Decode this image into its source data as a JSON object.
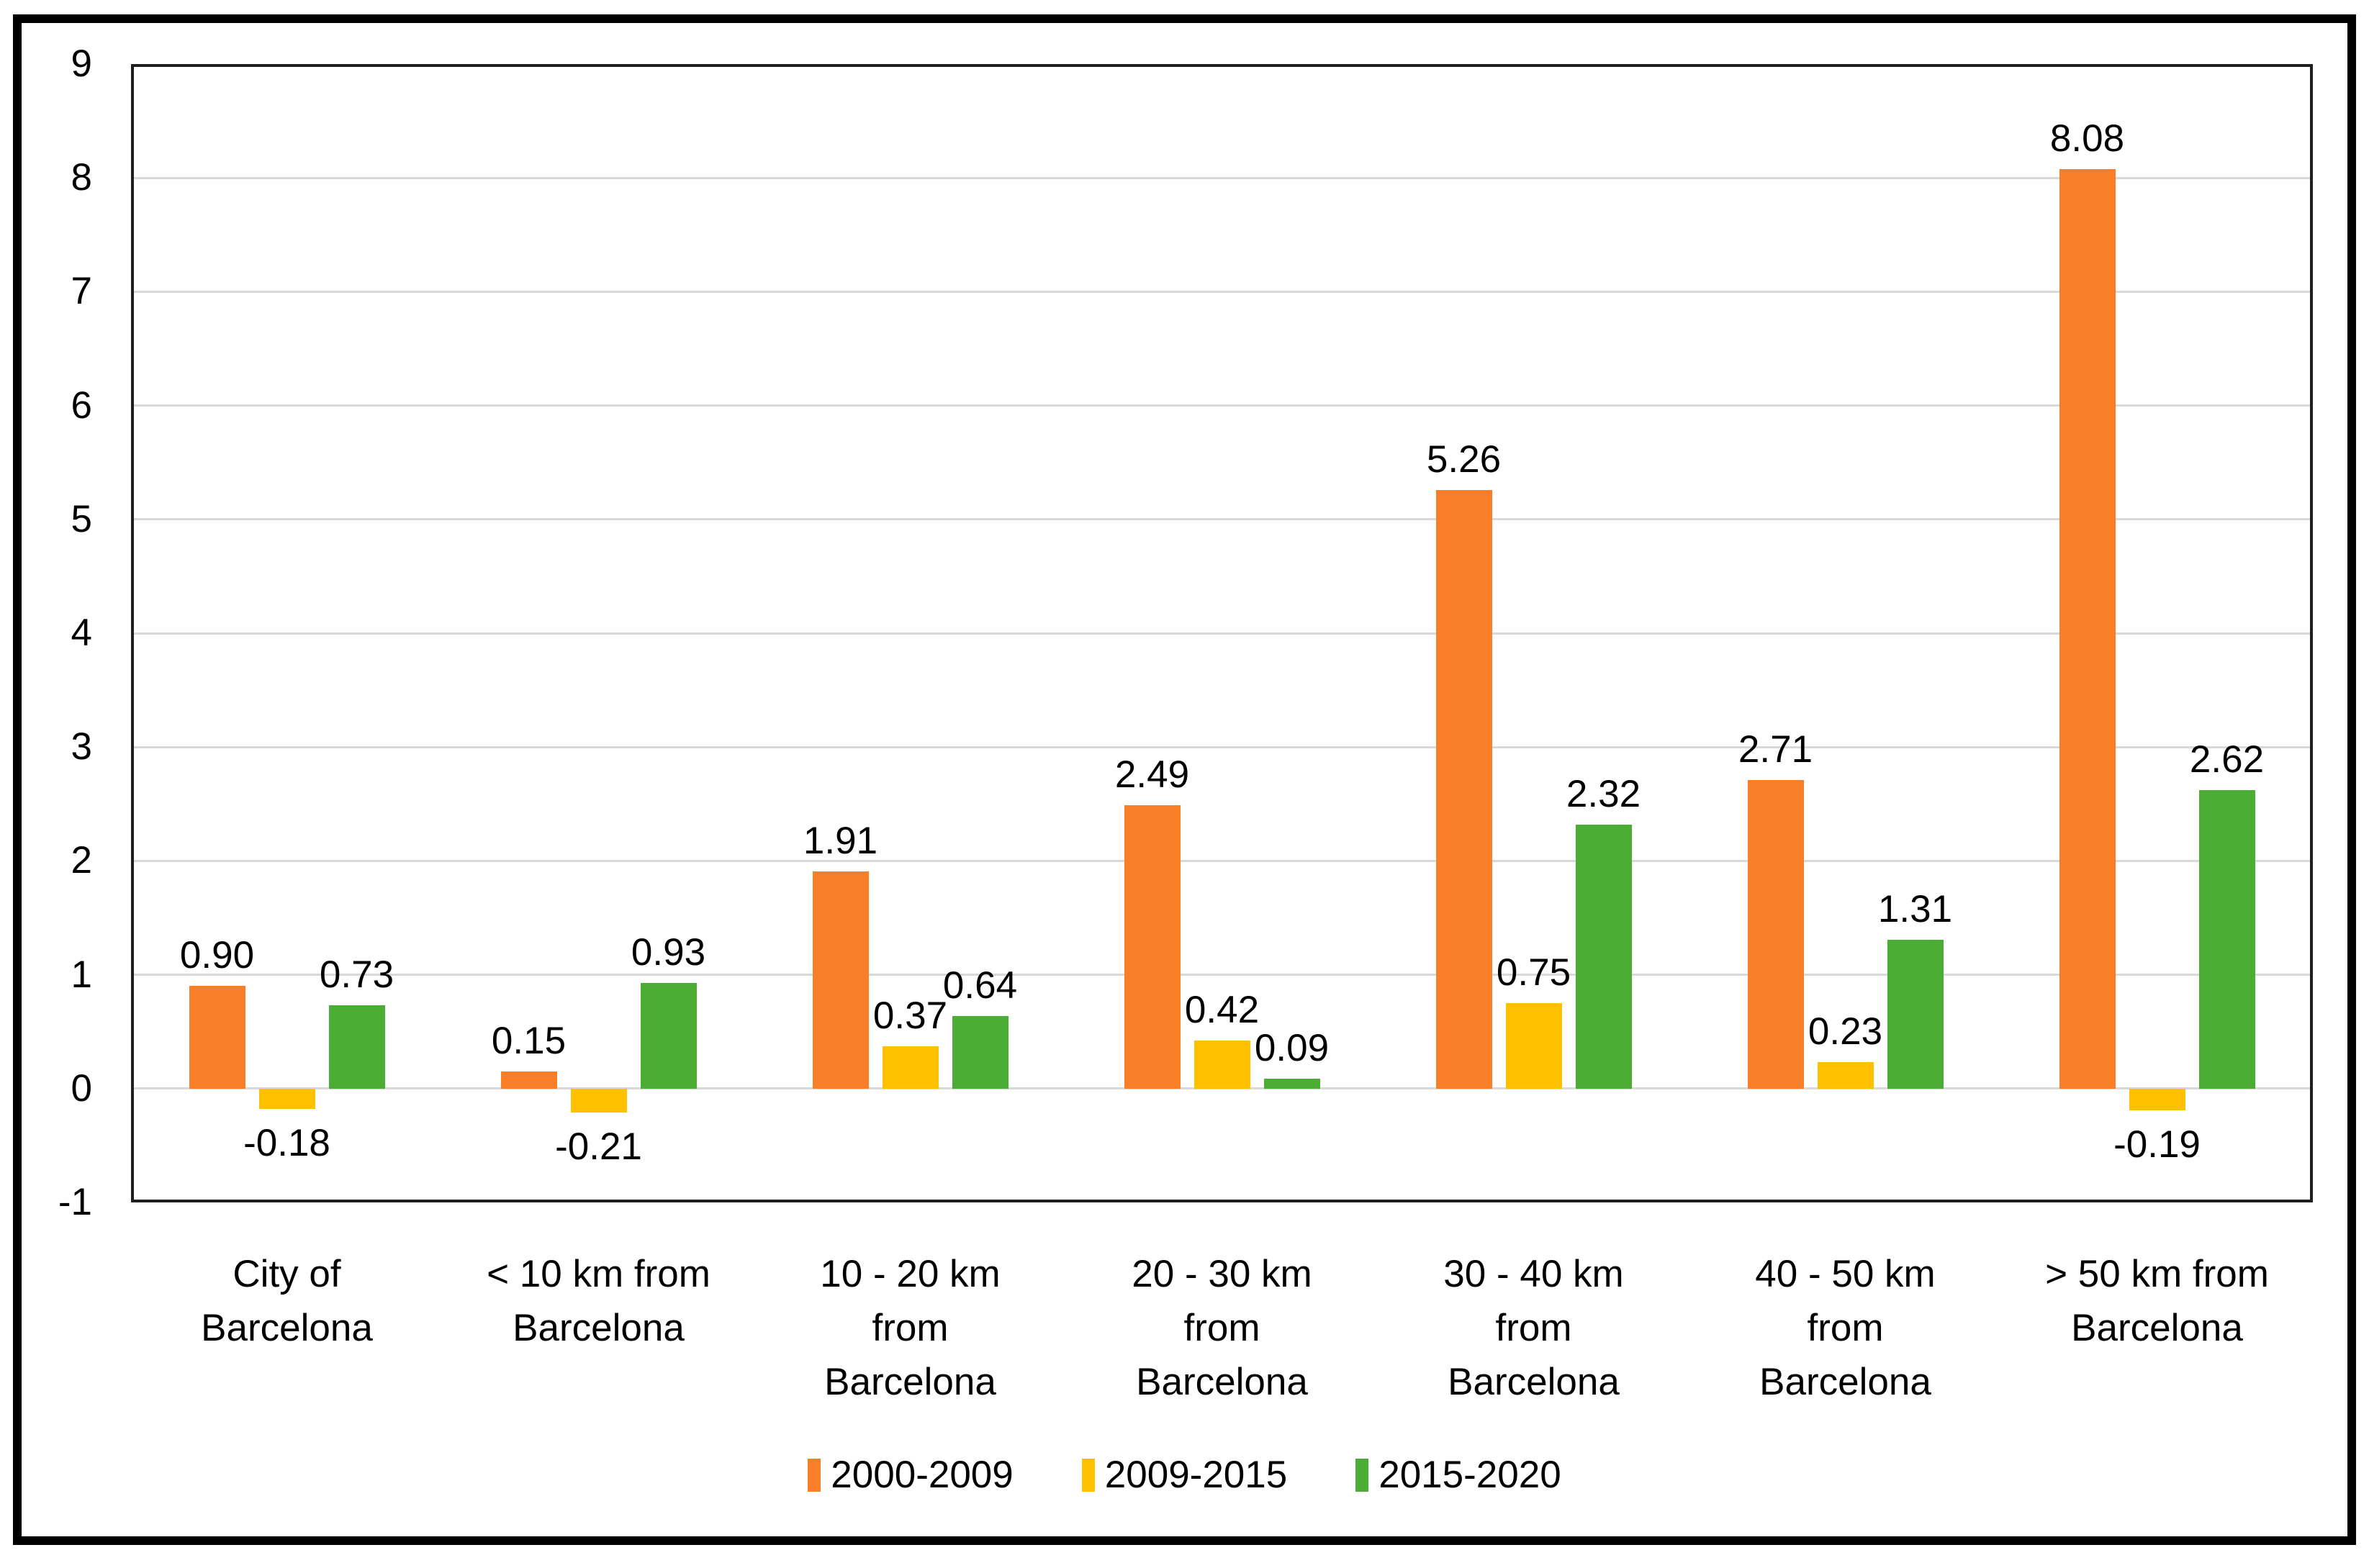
{
  "chart_data": {
    "type": "bar",
    "title": "",
    "categories": [
      "City of\nBarcelona",
      "< 10 km from\nBarcelona",
      "10 - 20 km\nfrom\nBarcelona",
      "20 - 30 km\nfrom\nBarcelona",
      "30 - 40 km\nfrom\nBarcelona",
      "40 - 50 km\nfrom\nBarcelona",
      "> 50 km from\nBarcelona"
    ],
    "series": [
      {
        "name": "2000-2009",
        "color": "#F97E28",
        "values": [
          0.9,
          0.15,
          1.91,
          2.49,
          5.26,
          2.71,
          8.08
        ],
        "labels": [
          "0.90",
          "0.15",
          "1.91",
          "2.49",
          "5.26",
          "2.71",
          "8.08"
        ]
      },
      {
        "name": "2009-2015",
        "color": "#FFC000",
        "values": [
          -0.18,
          -0.21,
          0.37,
          0.42,
          0.75,
          0.23,
          -0.19
        ],
        "labels": [
          "-0.18",
          "-0.21",
          "0.37",
          "0.42",
          "0.75",
          "0.23",
          "-0.19"
        ]
      },
      {
        "name": "2015-2020",
        "color": "#4BAD34",
        "values": [
          0.73,
          0.93,
          0.64,
          0.09,
          2.32,
          1.31,
          2.62
        ],
        "labels": [
          "0.73",
          "0.93",
          "0.64",
          "0.09",
          "2.32",
          "1.31",
          "2.62"
        ]
      }
    ],
    "ylim": [
      -1,
      9
    ],
    "yticks": [
      9,
      8,
      7,
      6,
      5,
      4,
      3,
      2,
      1,
      0,
      -1
    ],
    "grid": true,
    "grid_color": "#d9d9d9",
    "legend_position": "bottom"
  }
}
